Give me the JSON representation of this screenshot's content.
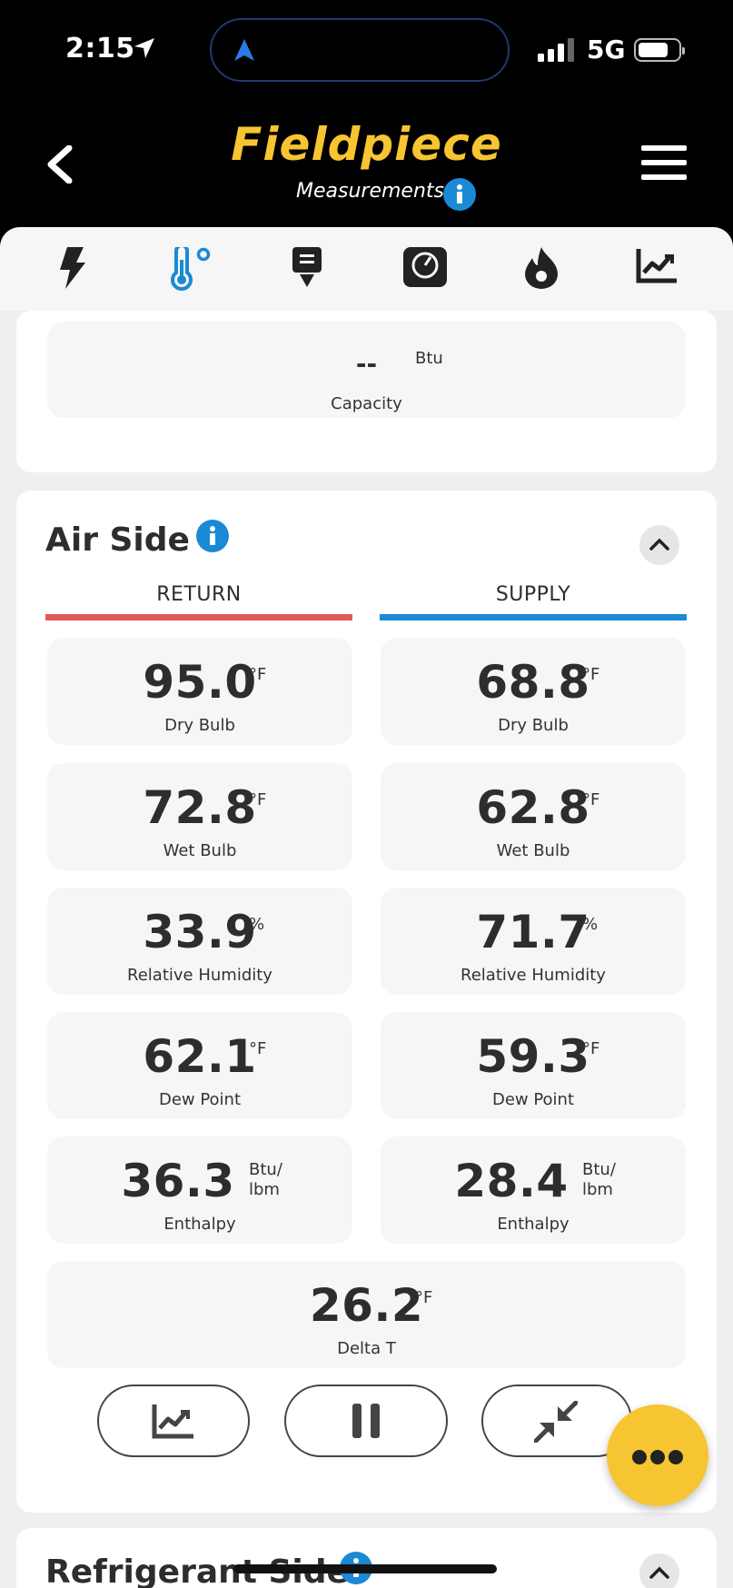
{
  "status_bar": {
    "time": "2:15",
    "network": "5G"
  },
  "header": {
    "brand": "Fieldpiece",
    "subtitle": "Measurements"
  },
  "toolbar": {
    "icons": [
      "lightning-icon",
      "thermometer-icon",
      "download-icon",
      "gauge-icon",
      "flame-icon",
      "chart-icon"
    ],
    "active_index": 1
  },
  "capacity": {
    "value": "--",
    "unit": "Btu",
    "label": "Capacity"
  },
  "air_side": {
    "title": "Air Side",
    "return_label": "RETURN",
    "supply_label": "SUPPLY",
    "return_color": "#e05a5a",
    "supply_color": "#1a8ad4",
    "return": [
      {
        "value": "95.0",
        "unit": "°F",
        "label": "Dry Bulb"
      },
      {
        "value": "72.8",
        "unit": "°F",
        "label": "Wet Bulb"
      },
      {
        "value": "33.9",
        "unit": "%",
        "label": "Relative Humidity"
      },
      {
        "value": "62.1",
        "unit": "°F",
        "label": "Dew Point"
      },
      {
        "value": "36.3",
        "unit_line1": "Btu/",
        "unit_line2": "lbm",
        "label": "Enthalpy"
      }
    ],
    "supply": [
      {
        "value": "68.8",
        "unit": "°F",
        "label": "Dry Bulb"
      },
      {
        "value": "62.8",
        "unit": "°F",
        "label": "Wet Bulb"
      },
      {
        "value": "71.7",
        "unit": "%",
        "label": "Relative Humidity"
      },
      {
        "value": "59.3",
        "unit": "°F",
        "label": "Dew Point"
      },
      {
        "value": "28.4",
        "unit_line1": "Btu/",
        "unit_line2": "lbm",
        "label": "Enthalpy"
      }
    ],
    "delta": {
      "value": "26.2",
      "unit": "°F",
      "label": "Delta T"
    }
  },
  "refrigerant_side": {
    "title": "Refrigerant Side"
  },
  "colors": {
    "brand": "#f7c531",
    "info": "#1a8ad4",
    "background": "#efefef"
  }
}
